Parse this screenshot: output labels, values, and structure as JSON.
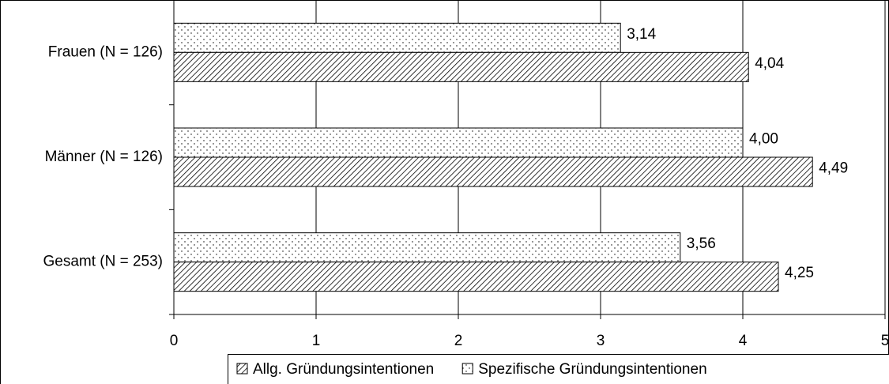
{
  "chart_data": {
    "type": "hbar",
    "categories": [
      "Frauen (N = 126)",
      "Männer (N = 126)",
      "Gesamt (N = 253)"
    ],
    "series": [
      {
        "name": "Allg. Gründungsintentionen",
        "color": "#000000",
        "pattern": "hatch",
        "values": [
          4.04,
          4.49,
          4.25
        ],
        "value_labels": [
          "4,04",
          "4,49",
          "4,25"
        ]
      },
      {
        "name": "Spezifische Gründungsintentionen",
        "color": "#000000",
        "pattern": "dots",
        "values": [
          3.14,
          4.0,
          3.56
        ],
        "value_labels": [
          "3,14",
          "4,00",
          "3,56"
        ]
      }
    ],
    "xlim": [
      0,
      5
    ],
    "xticks": [
      0,
      1,
      2,
      3,
      4,
      5
    ],
    "grid": true,
    "legend": "bottom"
  }
}
